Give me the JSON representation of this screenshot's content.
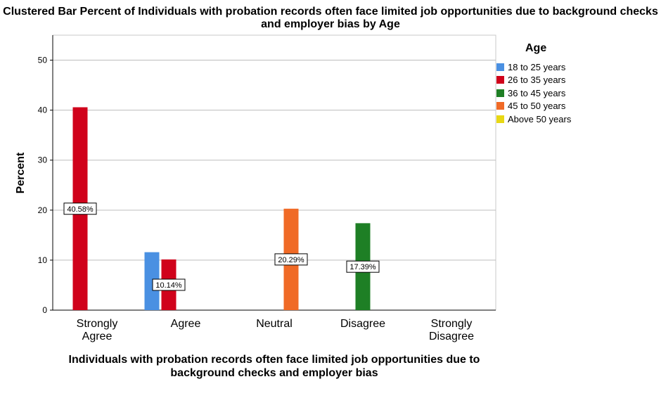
{
  "chart_data": {
    "type": "bar",
    "title": "Clustered Bar Percent of Individuals with probation records often face limited job opportunities due to background checks and employer bias by Age",
    "xlabel": "Individuals with probation records often face limited job opportunities due to background checks and employer bias",
    "ylabel": "Percent",
    "ylim": [
      0,
      55
    ],
    "yticks": [
      0,
      10,
      20,
      30,
      40,
      50
    ],
    "grid": true,
    "legend_title": "Age",
    "legend_position": "right",
    "categories": [
      "Strongly Agree",
      "Agree",
      "Neutral",
      "Disagree",
      "Strongly Disagree"
    ],
    "series": [
      {
        "name": "18 to 25 years",
        "color": "#4a90e2",
        "values": [
          0,
          11.59,
          0,
          0,
          0
        ]
      },
      {
        "name": "26 to 35 years",
        "color": "#d0021b",
        "values": [
          40.58,
          10.14,
          0,
          0,
          0
        ]
      },
      {
        "name": "36 to 45 years",
        "color": "#1e7f25",
        "values": [
          0,
          0,
          0,
          17.39,
          0
        ]
      },
      {
        "name": "45 to 50 years",
        "color": "#f06a26",
        "values": [
          0,
          0,
          20.29,
          0,
          0
        ]
      },
      {
        "name": "Above 50 years",
        "color": "#e8d814",
        "values": [
          0,
          0,
          0,
          0,
          0
        ]
      }
    ],
    "data_labels": [
      {
        "category": "Strongly Agree",
        "series": "26 to 35 years",
        "text": "40.58%"
      },
      {
        "category": "Agree",
        "series": "26 to 35 years",
        "text": "10.14%"
      },
      {
        "category": "Neutral",
        "series": "45 to 50 years",
        "text": "20.29%"
      },
      {
        "category": "Disagree",
        "series": "36 to 45 years",
        "text": "17.39%"
      }
    ]
  }
}
